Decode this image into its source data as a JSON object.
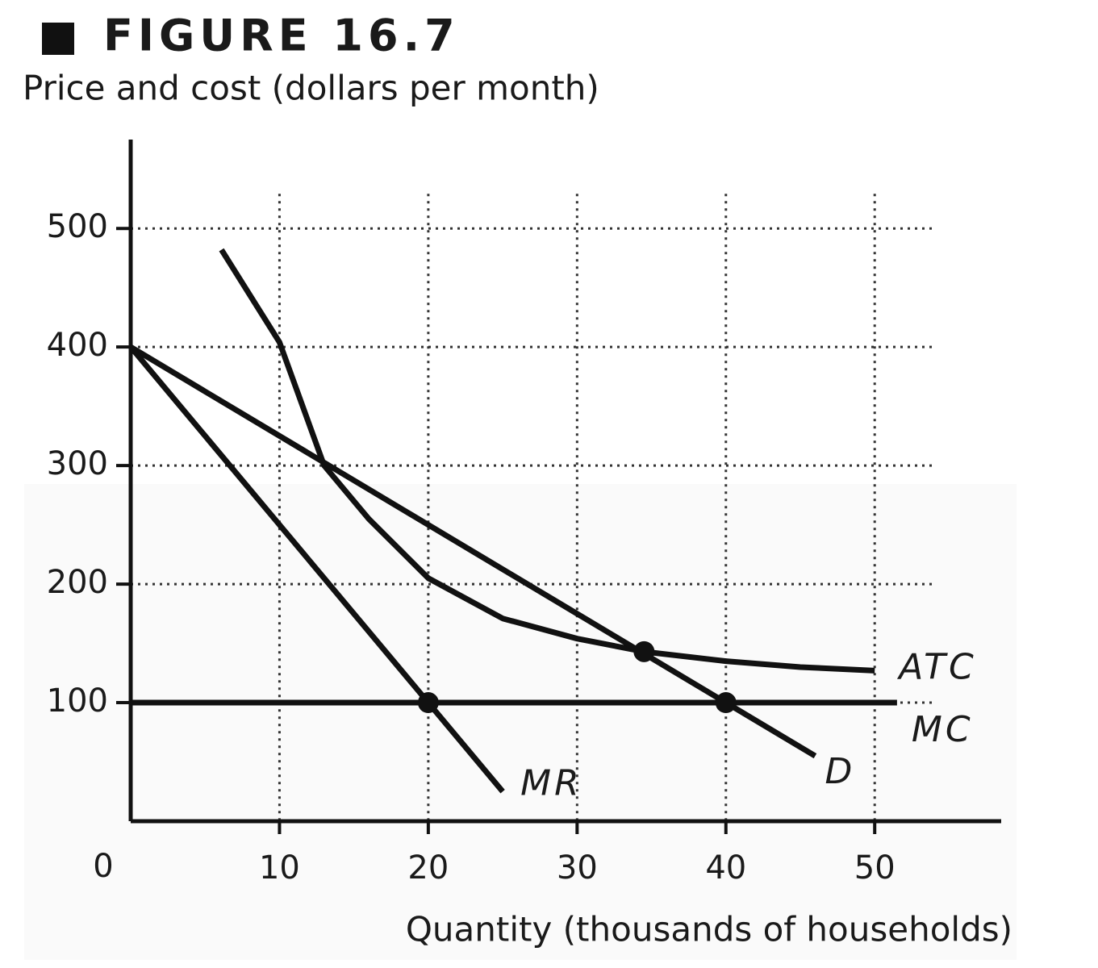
{
  "chart_data": {
    "type": "line",
    "title": "FIGURE 16.7",
    "y_label": "Price and cost (dollars per month)",
    "x_label": "Quantity (thousands of households)",
    "xlim": [
      0,
      58.5
    ],
    "ylim": [
      0,
      575
    ],
    "xticks": [
      0,
      10,
      20,
      30,
      40,
      50
    ],
    "yticks": [
      100,
      200,
      300,
      400,
      500
    ],
    "grid": true,
    "series": [
      {
        "name": "ATC",
        "color": "#111111",
        "x": [
          6.1,
          10,
          13,
          16,
          20,
          25,
          30,
          34.5,
          40,
          45,
          50
        ],
        "values": [
          482,
          404,
          300,
          255,
          205,
          171,
          154,
          143,
          135,
          130,
          127
        ]
      },
      {
        "name": "MC",
        "color": "#111111",
        "x": [
          0,
          51.5
        ],
        "values": [
          100,
          100
        ]
      },
      {
        "name": "D",
        "color": "#111111",
        "x": [
          0,
          46
        ],
        "values": [
          400,
          55
        ]
      },
      {
        "name": "MR",
        "color": "#111111",
        "x": [
          0,
          25
        ],
        "values": [
          400,
          25
        ]
      }
    ],
    "points": {
      "color": "#111111",
      "x": [
        20,
        40,
        34.5
      ],
      "values": [
        100,
        100,
        143
      ]
    }
  }
}
